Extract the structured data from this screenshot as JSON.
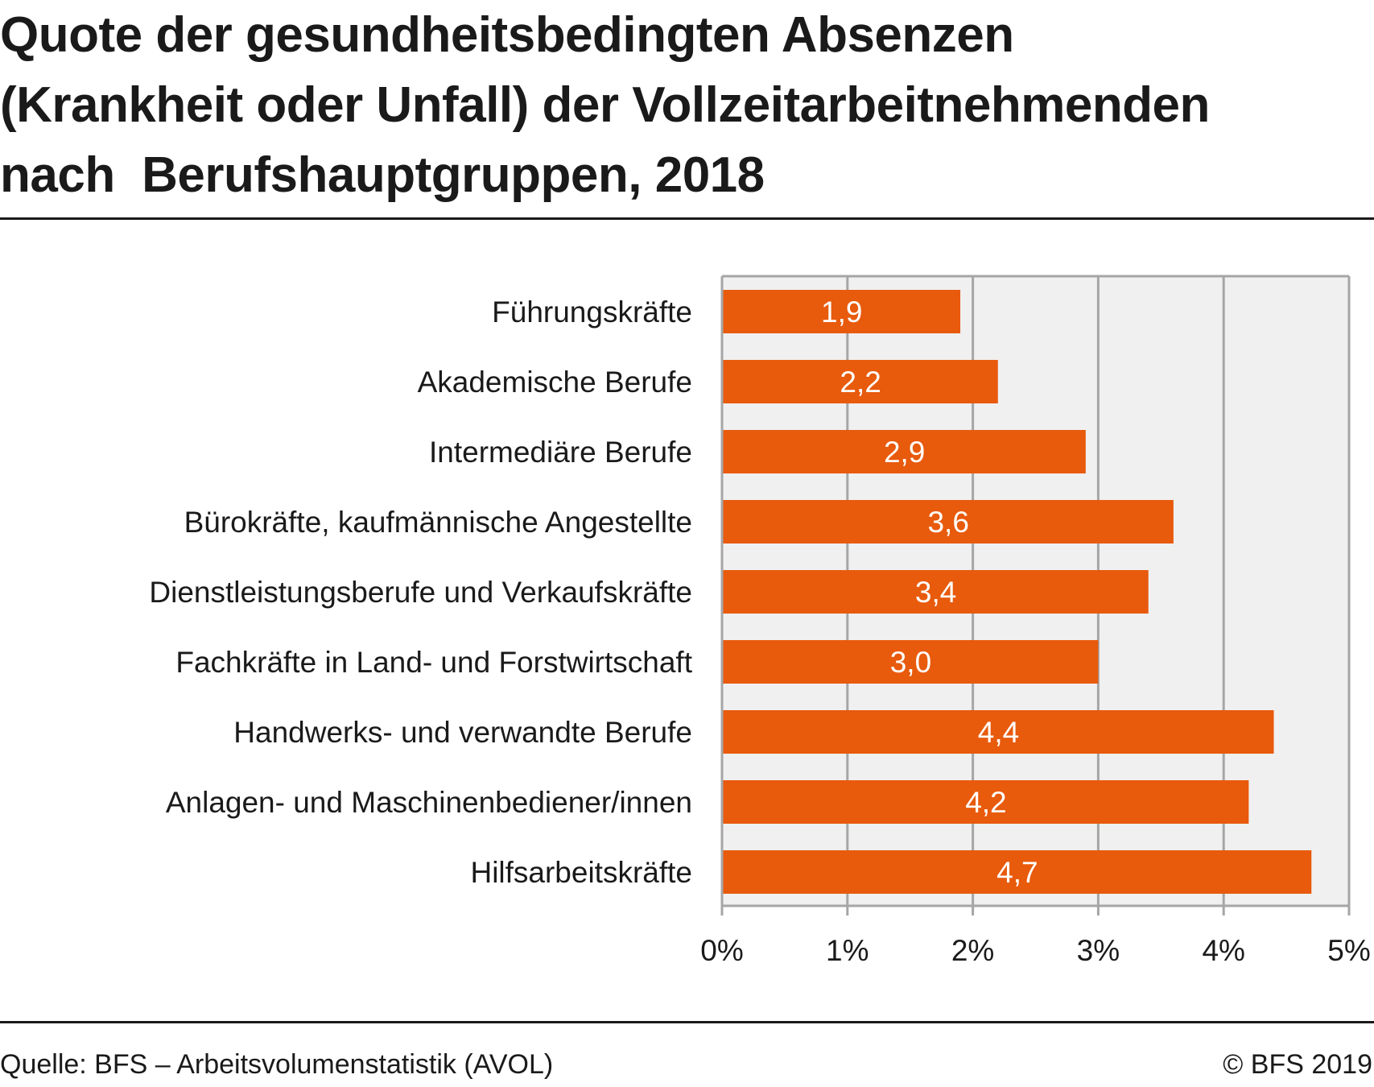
{
  "title_lines": [
    "Quote der gesundheitsbedingten Absenzen",
    "(Krankheit oder Unfall) der Vollzeitarbeitnehmenden",
    "nach  Berufshauptgruppen, 2018"
  ],
  "chart_data": {
    "type": "bar",
    "orientation": "horizontal",
    "title": "Quote der gesundheitsbedingten Absenzen (Krankheit oder Unfall) der Vollzeitarbeitnehmenden nach  Berufshauptgruppen, 2018",
    "categories": [
      "Führungskräfte",
      "Akademische Berufe",
      "Intermediäre Berufe",
      "Bürokräfte, kaufmännische Angestellte",
      "Dienstleistungsberufe und Verkaufskräfte",
      "Fachkräfte in Land- und Forstwirtschaft",
      "Handwerks- und verwandte Berufe",
      "Anlagen- und Maschinenbediener/innen",
      "Hilfsarbeitskräfte"
    ],
    "values": [
      1.9,
      2.2,
      2.9,
      3.6,
      3.4,
      3.0,
      4.4,
      4.2,
      4.7
    ],
    "value_labels": [
      "1,9",
      "2,2",
      "2,9",
      "3,6",
      "3,4",
      "3,0",
      "4,4",
      "4,2",
      "4,7"
    ],
    "xlim": [
      0,
      5
    ],
    "xticks": [
      0,
      1,
      2,
      3,
      4,
      5
    ],
    "xtick_labels": [
      "0%",
      "1%",
      "2%",
      "3%",
      "4%",
      "5%"
    ],
    "xlabel": "",
    "ylabel": "",
    "grid": true,
    "legend": false,
    "bar_color": "#e85a0c",
    "plot_background": "#f0f0f0",
    "grid_color": "#a6a6a6",
    "label_color": "#ffffff"
  },
  "footer": {
    "source": "Quelle: BFS – Arbeitsvolumenstatistik (AVOL)",
    "copyright": "© BFS 2019"
  }
}
